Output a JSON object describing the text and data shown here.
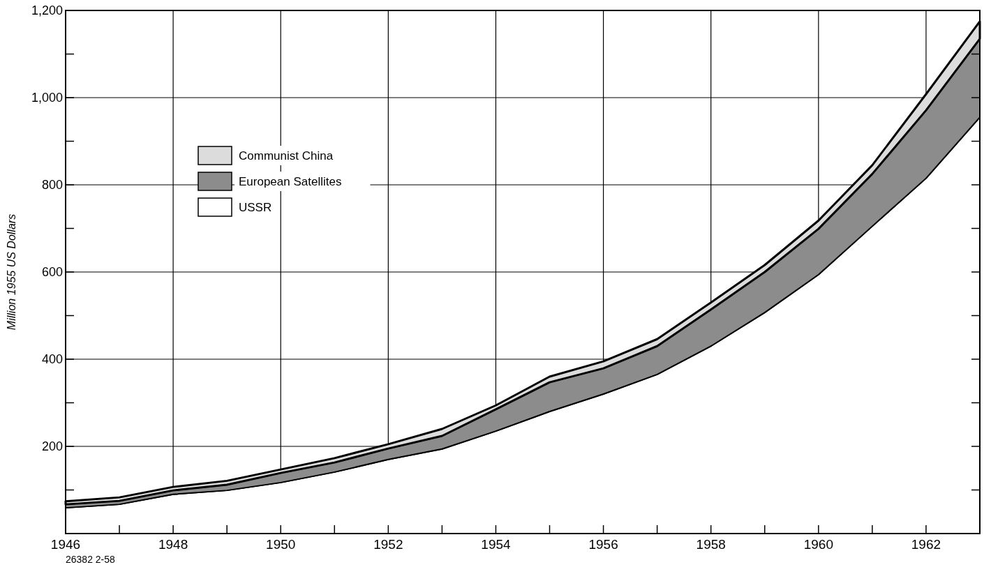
{
  "chart_data": {
    "type": "area",
    "stacked": true,
    "x": [
      1946,
      1947,
      1948,
      1949,
      1950,
      1951,
      1952,
      1953,
      1954,
      1955,
      1956,
      1957,
      1958,
      1959,
      1960,
      1961,
      1962,
      1963
    ],
    "series": [
      {
        "name": "USSR",
        "color": "#ffffff",
        "values": [
          59,
          67,
          90,
          99,
          117,
          141,
          170,
          194,
          235,
          280,
          320,
          365,
          430,
          507,
          594,
          705,
          815,
          955
        ]
      },
      {
        "name": "European Satellites",
        "color": "#8c8c8c",
        "values": [
          8,
          8,
          9,
          13,
          22,
          22,
          25,
          30,
          50,
          67,
          59,
          65,
          84,
          93,
          105,
          120,
          156,
          180
        ]
      },
      {
        "name": "Communist China",
        "color": "#dcdcdc",
        "values": [
          7,
          8,
          8,
          9,
          8,
          10,
          10,
          16,
          9,
          13,
          16,
          16,
          16,
          16,
          19,
          20,
          37,
          40
        ]
      }
    ],
    "xlim": [
      1946,
      1963
    ],
    "xticks": [
      1946,
      {
        "value": 1947,
        "label": null
      },
      1948,
      {
        "value": 1949,
        "label": null
      },
      1950,
      {
        "value": 1951,
        "label": null
      },
      1952,
      {
        "value": 1953,
        "label": null
      },
      1954,
      {
        "value": 1955,
        "label": null
      },
      1956,
      {
        "value": 1957,
        "label": null
      },
      1958,
      {
        "value": 1959,
        "label": null
      },
      1960,
      {
        "value": 1961,
        "label": null
      },
      1962
    ],
    "ylim": [
      0,
      1200
    ],
    "yticks": [
      {
        "value": 100,
        "label": null
      },
      200,
      {
        "value": 300,
        "label": null
      },
      400,
      {
        "value": 500,
        "label": null
      },
      600,
      {
        "value": 700,
        "label": null
      },
      800,
      {
        "value": 900,
        "label": null
      },
      {
        "value": 1000,
        "label": "1,000"
      },
      {
        "value": 1100,
        "label": null
      },
      {
        "value": 1200,
        "label": "1,200"
      }
    ],
    "ylabel": "Million 1955 US Dollars",
    "grid": true,
    "legend": "top left",
    "annotations": [
      "26382 2-58"
    ]
  }
}
